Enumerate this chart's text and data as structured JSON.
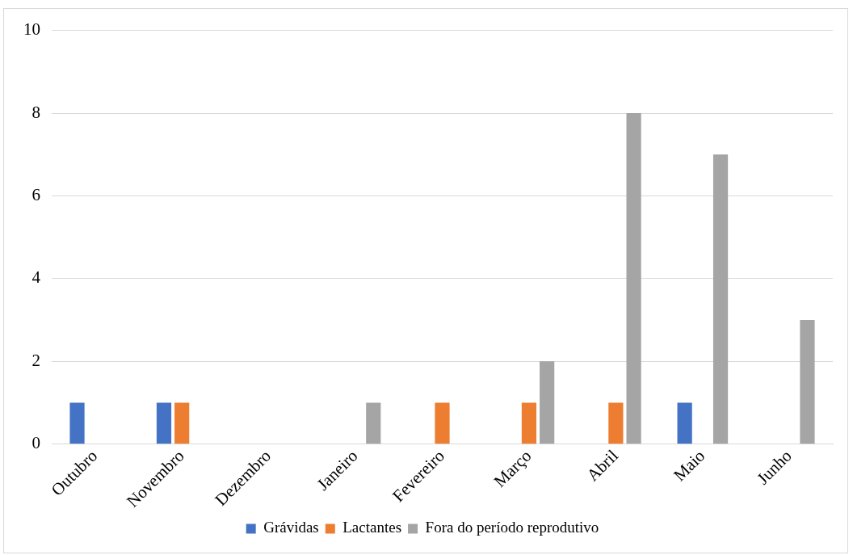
{
  "chart_data": {
    "type": "bar",
    "categories": [
      "Outubro",
      "Novembro",
      "Dezembro",
      "Janeiro",
      "Fevereiro",
      "Março",
      "Abril",
      "Maio",
      "Junho"
    ],
    "series": [
      {
        "name": "Grávidas",
        "color": "#4472c4",
        "values": [
          1,
          1,
          0,
          0,
          0,
          0,
          0,
          1,
          0
        ]
      },
      {
        "name": "Lactantes",
        "color": "#ed7d31",
        "values": [
          0,
          1,
          0,
          0,
          1,
          1,
          1,
          0,
          0
        ]
      },
      {
        "name": "Fora do período reprodutivo",
        "color": "#a5a5a5",
        "values": [
          0,
          0,
          0,
          1,
          0,
          2,
          8,
          7,
          3
        ]
      }
    ],
    "ylim": [
      0,
      10
    ],
    "yticks": [
      0,
      2,
      4,
      6,
      8,
      10
    ],
    "grid": "y",
    "legend": "bottom"
  }
}
